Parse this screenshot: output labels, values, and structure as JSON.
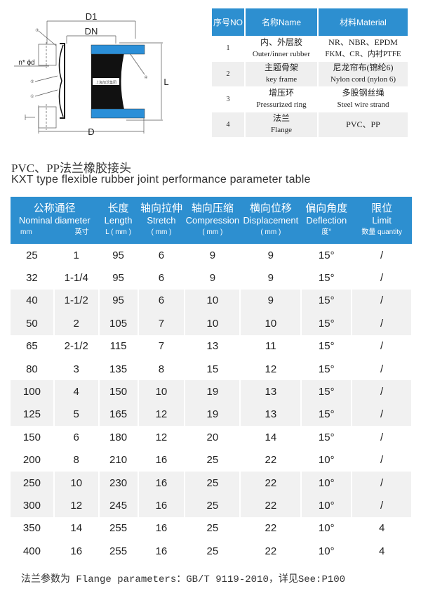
{
  "diagram": {
    "labels": {
      "d1": "D1",
      "dn": "DN",
      "d": "D",
      "l": "L",
      "bolt": "n* ϕd",
      "h": "H"
    },
    "callouts": [
      "①",
      "②",
      "③",
      "④"
    ],
    "stamp": "上海加沃集团",
    "colors": {
      "flange": "#2b8fd8",
      "rubber": "#111111"
    }
  },
  "parts_table": {
    "headers": [
      "序号NO",
      "名称Name",
      "材料Material"
    ],
    "rows": [
      {
        "no": "1",
        "name_cn": "内、外层胶",
        "name_en": "Outer/inner rubber",
        "mat_1": "NR、NBR、EPDM",
        "mat_2": "FKM、CR、内衬PTFE"
      },
      {
        "no": "2",
        "name_cn": "主题骨架",
        "name_en": "key frame",
        "mat_1": "尼龙帘布(锦纶6)",
        "mat_2": "Nylon cord (nylon 6)"
      },
      {
        "no": "3",
        "name_cn": "增压环",
        "name_en": "Pressurized ring",
        "mat_1": "多股钢丝绳",
        "mat_2": "Steel wire strand"
      },
      {
        "no": "4",
        "name_cn": "法兰",
        "name_en": "Flange",
        "mat_1": "PVC、PP",
        "mat_2": ""
      }
    ]
  },
  "title": "PVC、PP法兰橡胶接头",
  "subtitle": "KXT type flexible rubber joint performance parameter table",
  "perf_table": {
    "headers": [
      {
        "cn": "公称通径",
        "en": "Nominal diameter",
        "u1": "mm",
        "u2": "英寸"
      },
      {
        "cn": "长度",
        "en": "Length",
        "u": "L ( mm )"
      },
      {
        "cn": "轴向拉伸",
        "en": "Stretch",
        "u": "( mm )"
      },
      {
        "cn": "轴向压缩",
        "en": "Compression",
        "u": "( mm )"
      },
      {
        "cn": "横向位移",
        "en": "Displacement",
        "u": "( mm )"
      },
      {
        "cn": "偏向角度",
        "en": "Deflection",
        "u": "度°"
      },
      {
        "cn": "限位",
        "en": "Limit",
        "u": "数量 quantity"
      }
    ],
    "rows": [
      [
        "25",
        "1",
        "95",
        "6",
        "9",
        "9",
        "15°",
        "/"
      ],
      [
        "32",
        "1-1/4",
        "95",
        "6",
        "9",
        "9",
        "15°",
        "/"
      ],
      [
        "40",
        "1-1/2",
        "95",
        "6",
        "10",
        "9",
        "15°",
        "/"
      ],
      [
        "50",
        "2",
        "105",
        "7",
        "10",
        "10",
        "15°",
        "/"
      ],
      [
        "65",
        "2-1/2",
        "115",
        "7",
        "13",
        "11",
        "15°",
        "/"
      ],
      [
        "80",
        "3",
        "135",
        "8",
        "15",
        "12",
        "15°",
        "/"
      ],
      [
        "100",
        "4",
        "150",
        "10",
        "19",
        "13",
        "15°",
        "/"
      ],
      [
        "125",
        "5",
        "165",
        "12",
        "19",
        "13",
        "15°",
        "/"
      ],
      [
        "150",
        "6",
        "180",
        "12",
        "20",
        "14",
        "15°",
        "/"
      ],
      [
        "200",
        "8",
        "210",
        "16",
        "25",
        "22",
        "10°",
        "/"
      ],
      [
        "250",
        "10",
        "230",
        "16",
        "25",
        "22",
        "10°",
        "/"
      ],
      [
        "300",
        "12",
        "245",
        "16",
        "25",
        "22",
        "10°",
        "/"
      ],
      [
        "350",
        "14",
        "255",
        "16",
        "25",
        "22",
        "10°",
        "4"
      ],
      [
        "400",
        "16",
        "255",
        "16",
        "25",
        "22",
        "10°",
        "4"
      ]
    ]
  },
  "footer": "法兰参数为 Flange parameters：GB/T 9119-2010，详见See:P100"
}
